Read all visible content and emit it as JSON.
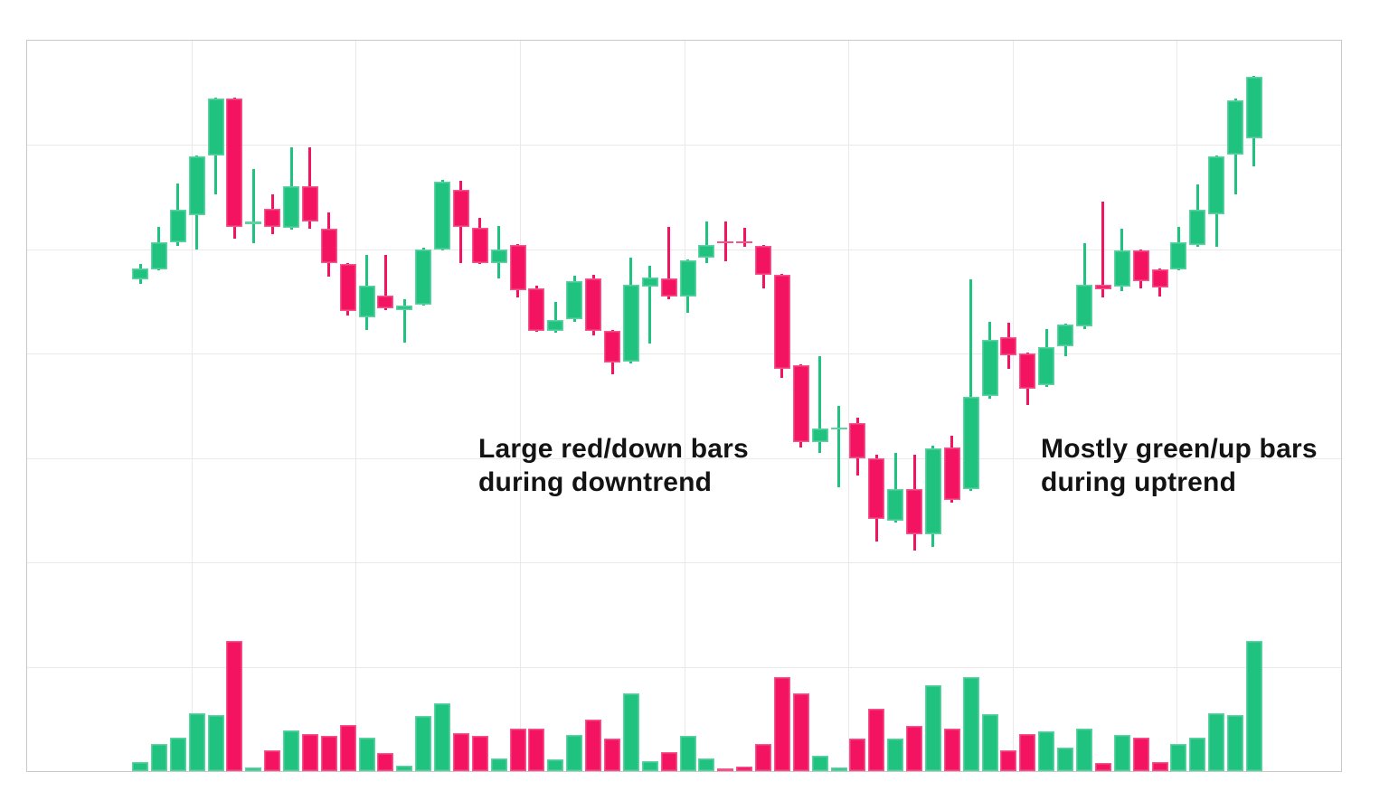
{
  "annotations": {
    "downtrend": {
      "line1": "Large red/down bars",
      "line2": "during downtrend"
    },
    "uptrend": {
      "line1": "Mostly green/up bars",
      "line2": "during uptrend"
    }
  },
  "colors": {
    "up": "#1FC27E",
    "down": "#F31360",
    "grid": "#e9e9e9",
    "frame": "#c9c9c9",
    "background": "#ffffff",
    "annotation_text": "#131313"
  },
  "chart_data": {
    "type": "candlestick",
    "panes": [
      "price",
      "volume"
    ],
    "title": "",
    "xlabel": "",
    "ylabel": "",
    "axis_labels_visible": false,
    "grid": true,
    "price_axis": {
      "min": 0,
      "max": 115,
      "units": "arbitrary"
    },
    "volume_axis": {
      "min": 0,
      "max": 150,
      "units": "arbitrary"
    },
    "candle_count": 60,
    "candles": [
      {
        "o": 62.4,
        "h": 65.8,
        "l": 61.4,
        "c": 64.8,
        "v": 10
      },
      {
        "o": 64.6,
        "h": 74.0,
        "l": 64.4,
        "c": 70.6,
        "v": 30
      },
      {
        "o": 70.6,
        "h": 83.6,
        "l": 69.8,
        "c": 77.8,
        "v": 37
      },
      {
        "o": 76.6,
        "h": 89.8,
        "l": 69.0,
        "c": 89.6,
        "v": 64
      },
      {
        "o": 89.8,
        "h": 102.6,
        "l": 81.2,
        "c": 102.4,
        "v": 62
      },
      {
        "o": 102.4,
        "h": 102.6,
        "l": 71.4,
        "c": 74.0,
        "v": 144
      },
      {
        "o": 74.6,
        "h": 86.8,
        "l": 70.4,
        "c": 75.2,
        "v": 4
      },
      {
        "o": 78.0,
        "h": 81.2,
        "l": 72.4,
        "c": 74.0,
        "v": 23
      },
      {
        "o": 73.8,
        "h": 91.6,
        "l": 73.4,
        "c": 83.0,
        "v": 45
      },
      {
        "o": 83.0,
        "h": 91.6,
        "l": 73.6,
        "c": 75.2,
        "v": 41
      },
      {
        "o": 73.6,
        "h": 77.2,
        "l": 63.0,
        "c": 66.0,
        "v": 39
      },
      {
        "o": 65.8,
        "h": 66.0,
        "l": 54.4,
        "c": 55.4,
        "v": 51
      },
      {
        "o": 54.0,
        "h": 67.8,
        "l": 51.2,
        "c": 61.0,
        "v": 37
      },
      {
        "o": 58.8,
        "h": 67.8,
        "l": 55.6,
        "c": 56.0,
        "v": 20
      },
      {
        "o": 55.6,
        "h": 58.0,
        "l": 48.4,
        "c": 56.6,
        "v": 6
      },
      {
        "o": 56.8,
        "h": 69.4,
        "l": 56.6,
        "c": 69.0,
        "v": 61
      },
      {
        "o": 69.0,
        "h": 84.4,
        "l": 68.8,
        "c": 84.0,
        "v": 75
      },
      {
        "o": 82.2,
        "h": 84.2,
        "l": 66.0,
        "c": 74.0,
        "v": 42
      },
      {
        "o": 73.8,
        "h": 76.0,
        "l": 65.8,
        "c": 66.0,
        "v": 39
      },
      {
        "o": 66.0,
        "h": 74.2,
        "l": 62.6,
        "c": 69.0,
        "v": 14
      },
      {
        "o": 70.0,
        "h": 70.2,
        "l": 58.4,
        "c": 60.0,
        "v": 47
      },
      {
        "o": 60.4,
        "h": 61.0,
        "l": 50.8,
        "c": 51.0,
        "v": 47
      },
      {
        "o": 51.0,
        "h": 57.4,
        "l": 50.6,
        "c": 53.4,
        "v": 13
      },
      {
        "o": 53.6,
        "h": 63.2,
        "l": 53.0,
        "c": 62.0,
        "v": 40
      },
      {
        "o": 62.6,
        "h": 63.4,
        "l": 50.0,
        "c": 51.0,
        "v": 57
      },
      {
        "o": 51.0,
        "h": 51.2,
        "l": 41.4,
        "c": 44.0,
        "v": 36
      },
      {
        "o": 44.2,
        "h": 67.2,
        "l": 43.8,
        "c": 61.2,
        "v": 86
      },
      {
        "o": 60.8,
        "h": 65.4,
        "l": 48.2,
        "c": 62.8,
        "v": 11
      },
      {
        "o": 62.6,
        "h": 74.0,
        "l": 58.0,
        "c": 58.6,
        "v": 21
      },
      {
        "o": 58.6,
        "h": 66.8,
        "l": 55.0,
        "c": 66.6,
        "v": 39
      },
      {
        "o": 67.2,
        "h": 75.2,
        "l": 66.0,
        "c": 70.0,
        "v": 14
      },
      {
        "o": 70.8,
        "h": 75.2,
        "l": 66.4,
        "c": 70.4,
        "v": 3
      },
      {
        "o": 70.8,
        "h": 73.8,
        "l": 69.6,
        "c": 70.4,
        "v": 5
      },
      {
        "o": 69.8,
        "h": 70.0,
        "l": 60.4,
        "c": 63.4,
        "v": 30
      },
      {
        "o": 63.4,
        "h": 63.6,
        "l": 40.6,
        "c": 42.6,
        "v": 104
      },
      {
        "o": 43.4,
        "h": 43.6,
        "l": 25.2,
        "c": 26.4,
        "v": 86
      },
      {
        "o": 26.4,
        "h": 45.4,
        "l": 24.0,
        "c": 29.4,
        "v": 17
      },
      {
        "o": 29.2,
        "h": 34.4,
        "l": 16.4,
        "c": 29.6,
        "v": 4
      },
      {
        "o": 30.6,
        "h": 31.8,
        "l": 19.0,
        "c": 22.8,
        "v": 36
      },
      {
        "o": 22.8,
        "h": 23.6,
        "l": 4.4,
        "c": 9.4,
        "v": 69
      },
      {
        "o": 9.0,
        "h": 24.0,
        "l": 8.6,
        "c": 16.0,
        "v": 36
      },
      {
        "o": 16.0,
        "h": 23.6,
        "l": 2.4,
        "c": 6.0,
        "v": 50
      },
      {
        "o": 6.0,
        "h": 25.6,
        "l": 3.2,
        "c": 25.0,
        "v": 95
      },
      {
        "o": 25.2,
        "h": 27.8,
        "l": 13.0,
        "c": 13.6,
        "v": 47
      },
      {
        "o": 16.0,
        "h": 62.4,
        "l": 15.6,
        "c": 36.4,
        "v": 104
      },
      {
        "o": 36.6,
        "h": 53.0,
        "l": 36.0,
        "c": 49.0,
        "v": 63
      },
      {
        "o": 49.6,
        "h": 52.8,
        "l": 42.6,
        "c": 45.6,
        "v": 23
      },
      {
        "o": 46.0,
        "h": 46.2,
        "l": 34.6,
        "c": 38.2,
        "v": 41
      },
      {
        "o": 39.0,
        "h": 51.4,
        "l": 38.6,
        "c": 47.4,
        "v": 44
      },
      {
        "o": 47.6,
        "h": 52.6,
        "l": 45.4,
        "c": 52.4,
        "v": 26
      },
      {
        "o": 52.0,
        "h": 70.4,
        "l": 51.4,
        "c": 61.2,
        "v": 47
      },
      {
        "o": 61.2,
        "h": 79.6,
        "l": 58.4,
        "c": 60.2,
        "v": 9
      },
      {
        "o": 60.8,
        "h": 73.6,
        "l": 59.8,
        "c": 68.8,
        "v": 40
      },
      {
        "o": 68.8,
        "h": 69.0,
        "l": 60.4,
        "c": 62.0,
        "v": 37
      },
      {
        "o": 64.6,
        "h": 64.8,
        "l": 58.6,
        "c": 60.6,
        "v": 10
      },
      {
        "o": 64.6,
        "h": 74.0,
        "l": 64.4,
        "c": 70.6,
        "v": 30
      },
      {
        "o": 70.0,
        "h": 83.4,
        "l": 69.6,
        "c": 77.8,
        "v": 37
      },
      {
        "o": 76.8,
        "h": 89.8,
        "l": 69.6,
        "c": 89.6,
        "v": 64
      },
      {
        "o": 90.0,
        "h": 102.4,
        "l": 81.2,
        "c": 102.0,
        "v": 62
      },
      {
        "o": 93.6,
        "h": 107.4,
        "l": 87.4,
        "c": 107.2,
        "v": 144
      }
    ]
  }
}
